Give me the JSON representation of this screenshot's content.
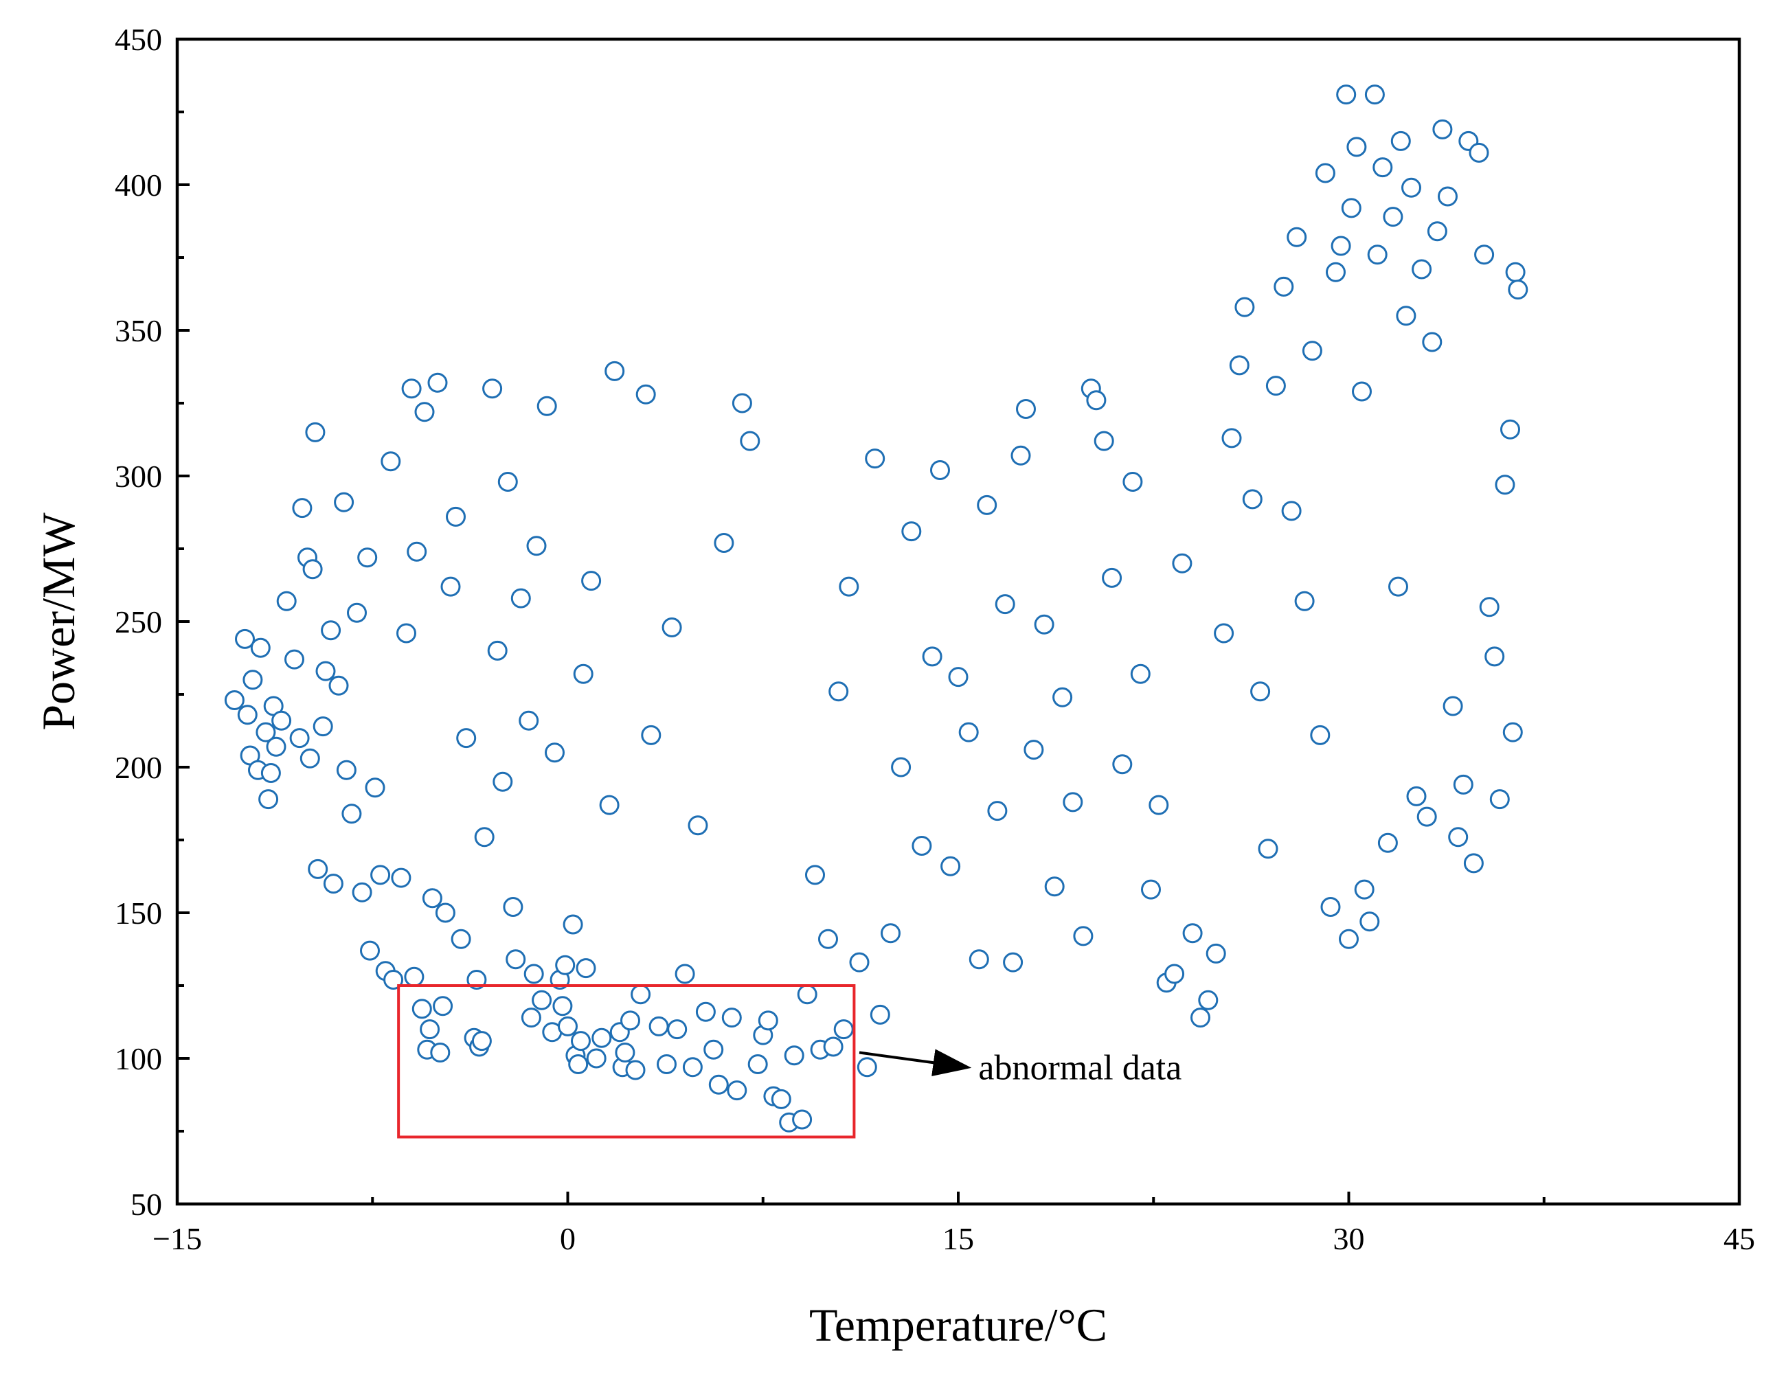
{
  "chart_data": {
    "type": "scatter",
    "xlabel": "Temperature/°C",
    "ylabel": "Power/MW",
    "xlim": [
      -15,
      45
    ],
    "ylim": [
      50,
      450
    ],
    "x_ticks": [
      "−15",
      "0",
      "15",
      "30",
      "45"
    ],
    "x_tick_values": [
      -15,
      0,
      15,
      30,
      45
    ],
    "y_ticks": [
      "50",
      "100",
      "150",
      "200",
      "250",
      "300",
      "350",
      "400",
      "450"
    ],
    "y_tick_values": [
      50,
      100,
      150,
      200,
      250,
      300,
      350,
      400,
      450
    ],
    "grid": false,
    "legend": "none",
    "marker": "hollow-circle",
    "series_color": "#1f6fb4",
    "highlight_color": "#e8262c",
    "annotation": {
      "text": "abnormal data",
      "box": {
        "x0": -6.5,
        "x1": 11.0,
        "y0": 73,
        "y1": 125
      },
      "arrow_from": [
        11.2,
        102
      ],
      "arrow_to": [
        15.3,
        97
      ]
    },
    "points": [
      [
        -12.8,
        223
      ],
      [
        -12.4,
        244
      ],
      [
        -12.3,
        218
      ],
      [
        -12.2,
        204
      ],
      [
        -12.1,
        230
      ],
      [
        -11.9,
        199
      ],
      [
        -11.8,
        241
      ],
      [
        -11.6,
        212
      ],
      [
        -11.5,
        189
      ],
      [
        -11.4,
        198
      ],
      [
        -11.3,
        221
      ],
      [
        -11.2,
        207
      ],
      [
        -11.0,
        216
      ],
      [
        -10.8,
        257
      ],
      [
        -10.5,
        237
      ],
      [
        -10.3,
        210
      ],
      [
        -10.2,
        289
      ],
      [
        -10.0,
        272
      ],
      [
        -9.9,
        203
      ],
      [
        -9.8,
        268
      ],
      [
        -9.7,
        315
      ],
      [
        -9.6,
        165
      ],
      [
        -9.4,
        214
      ],
      [
        -9.3,
        233
      ],
      [
        -9.1,
        247
      ],
      [
        -9.0,
        160
      ],
      [
        -8.8,
        228
      ],
      [
        -8.6,
        291
      ],
      [
        -8.5,
        199
      ],
      [
        -8.3,
        184
      ],
      [
        -8.1,
        253
      ],
      [
        -7.9,
        157
      ],
      [
        -7.7,
        272
      ],
      [
        -7.6,
        137
      ],
      [
        -7.4,
        193
      ],
      [
        -7.2,
        163
      ],
      [
        -7.0,
        130
      ],
      [
        -6.8,
        305
      ],
      [
        -6.7,
        127
      ],
      [
        -6.4,
        162
      ],
      [
        -6.2,
        246
      ],
      [
        -6.0,
        330
      ],
      [
        -5.9,
        128
      ],
      [
        -5.8,
        274
      ],
      [
        -5.6,
        117
      ],
      [
        -5.5,
        322
      ],
      [
        -5.4,
        103
      ],
      [
        -5.3,
        110
      ],
      [
        -5.2,
        155
      ],
      [
        -5.0,
        332
      ],
      [
        -4.9,
        102
      ],
      [
        -4.8,
        118
      ],
      [
        -4.7,
        150
      ],
      [
        -4.5,
        262
      ],
      [
        -4.3,
        286
      ],
      [
        -4.1,
        141
      ],
      [
        -3.9,
        210
      ],
      [
        -3.6,
        107
      ],
      [
        -3.5,
        127
      ],
      [
        -3.4,
        104
      ],
      [
        -3.3,
        106
      ],
      [
        -3.2,
        176
      ],
      [
        -2.9,
        330
      ],
      [
        -2.7,
        240
      ],
      [
        -2.5,
        195
      ],
      [
        -2.3,
        298
      ],
      [
        -2.1,
        152
      ],
      [
        -2.0,
        134
      ],
      [
        -1.8,
        258
      ],
      [
        -1.5,
        216
      ],
      [
        -1.4,
        114
      ],
      [
        -1.3,
        129
      ],
      [
        -1.2,
        276
      ],
      [
        -1.0,
        120
      ],
      [
        -0.8,
        324
      ],
      [
        -0.6,
        109
      ],
      [
        -0.5,
        205
      ],
      [
        -0.3,
        127
      ],
      [
        -0.2,
        118
      ],
      [
        -0.1,
        132
      ],
      [
        0.0,
        111
      ],
      [
        0.2,
        146
      ],
      [
        0.3,
        101
      ],
      [
        0.4,
        98
      ],
      [
        0.5,
        106
      ],
      [
        0.6,
        232
      ],
      [
        0.7,
        131
      ],
      [
        0.9,
        264
      ],
      [
        1.1,
        100
      ],
      [
        1.3,
        107
      ],
      [
        1.6,
        187
      ],
      [
        1.8,
        336
      ],
      [
        2.0,
        109
      ],
      [
        2.1,
        97
      ],
      [
        2.2,
        102
      ],
      [
        2.4,
        113
      ],
      [
        2.6,
        96
      ],
      [
        2.8,
        122
      ],
      [
        3.0,
        328
      ],
      [
        3.2,
        211
      ],
      [
        3.5,
        111
      ],
      [
        3.8,
        98
      ],
      [
        4.0,
        248
      ],
      [
        4.2,
        110
      ],
      [
        4.5,
        129
      ],
      [
        4.8,
        97
      ],
      [
        5.0,
        180
      ],
      [
        5.3,
        116
      ],
      [
        5.6,
        103
      ],
      [
        5.8,
        91
      ],
      [
        6.0,
        277
      ],
      [
        6.3,
        114
      ],
      [
        6.5,
        89
      ],
      [
        6.7,
        325
      ],
      [
        7.0,
        312
      ],
      [
        7.3,
        98
      ],
      [
        7.5,
        108
      ],
      [
        7.7,
        113
      ],
      [
        7.9,
        87
      ],
      [
        8.2,
        86
      ],
      [
        8.5,
        78
      ],
      [
        8.7,
        101
      ],
      [
        9.0,
        79
      ],
      [
        9.2,
        122
      ],
      [
        9.5,
        163
      ],
      [
        9.7,
        103
      ],
      [
        10.0,
        141
      ],
      [
        10.2,
        104
      ],
      [
        10.4,
        226
      ],
      [
        10.6,
        110
      ],
      [
        10.8,
        262
      ],
      [
        11.2,
        133
      ],
      [
        11.5,
        97
      ],
      [
        11.8,
        306
      ],
      [
        12.0,
        115
      ],
      [
        12.4,
        143
      ],
      [
        12.8,
        200
      ],
      [
        13.2,
        281
      ],
      [
        13.6,
        173
      ],
      [
        14.0,
        238
      ],
      [
        14.3,
        302
      ],
      [
        14.7,
        166
      ],
      [
        15.0,
        231
      ],
      [
        15.4,
        212
      ],
      [
        15.8,
        134
      ],
      [
        16.1,
        290
      ],
      [
        16.5,
        185
      ],
      [
        16.8,
        256
      ],
      [
        17.1,
        133
      ],
      [
        17.4,
        307
      ],
      [
        17.6,
        323
      ],
      [
        17.9,
        206
      ],
      [
        18.3,
        249
      ],
      [
        18.7,
        159
      ],
      [
        19.0,
        224
      ],
      [
        19.4,
        188
      ],
      [
        19.8,
        142
      ],
      [
        20.1,
        330
      ],
      [
        20.3,
        326
      ],
      [
        20.6,
        312
      ],
      [
        20.9,
        265
      ],
      [
        21.3,
        201
      ],
      [
        21.7,
        298
      ],
      [
        22.0,
        232
      ],
      [
        22.4,
        158
      ],
      [
        22.7,
        187
      ],
      [
        23.0,
        126
      ],
      [
        23.3,
        129
      ],
      [
        23.6,
        270
      ],
      [
        24.0,
        143
      ],
      [
        24.3,
        114
      ],
      [
        24.6,
        120
      ],
      [
        24.9,
        136
      ],
      [
        25.2,
        246
      ],
      [
        25.5,
        313
      ],
      [
        25.8,
        338
      ],
      [
        26.0,
        358
      ],
      [
        26.3,
        292
      ],
      [
        26.6,
        226
      ],
      [
        26.9,
        172
      ],
      [
        27.2,
        331
      ],
      [
        27.5,
        365
      ],
      [
        27.8,
        288
      ],
      [
        28.0,
        382
      ],
      [
        28.3,
        257
      ],
      [
        28.6,
        343
      ],
      [
        28.9,
        211
      ],
      [
        29.1,
        404
      ],
      [
        29.3,
        152
      ],
      [
        29.5,
        370
      ],
      [
        29.7,
        379
      ],
      [
        29.9,
        431
      ],
      [
        30.0,
        141
      ],
      [
        30.1,
        392
      ],
      [
        30.3,
        413
      ],
      [
        30.5,
        329
      ],
      [
        30.6,
        158
      ],
      [
        30.8,
        147
      ],
      [
        31.0,
        431
      ],
      [
        31.1,
        376
      ],
      [
        31.3,
        406
      ],
      [
        31.5,
        174
      ],
      [
        31.7,
        389
      ],
      [
        31.9,
        262
      ],
      [
        32.0,
        415
      ],
      [
        32.2,
        355
      ],
      [
        32.4,
        399
      ],
      [
        32.6,
        190
      ],
      [
        32.8,
        371
      ],
      [
        33.0,
        183
      ],
      [
        33.2,
        346
      ],
      [
        33.4,
        384
      ],
      [
        33.6,
        419
      ],
      [
        33.8,
        396
      ],
      [
        34.0,
        221
      ],
      [
        34.2,
        176
      ],
      [
        34.4,
        194
      ],
      [
        34.6,
        415
      ],
      [
        34.8,
        167
      ],
      [
        35.0,
        411
      ],
      [
        35.2,
        376
      ],
      [
        35.4,
        255
      ],
      [
        35.6,
        238
      ],
      [
        35.8,
        189
      ],
      [
        36.0,
        297
      ],
      [
        36.2,
        316
      ],
      [
        36.3,
        212
      ],
      [
        36.4,
        370
      ],
      [
        36.5,
        364
      ]
    ]
  }
}
